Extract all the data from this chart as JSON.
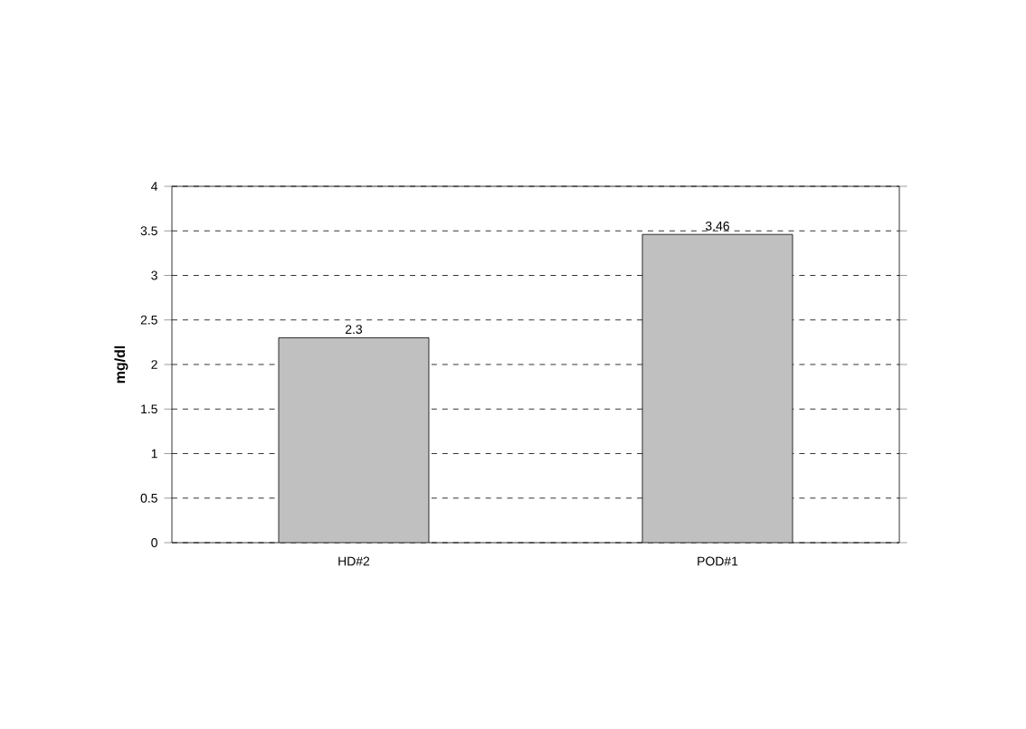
{
  "chart_data": {
    "type": "bar",
    "ylabel": "mg/dl",
    "categories": [
      "HD#2",
      "POD#1"
    ],
    "values": [
      2.3,
      3.46
    ],
    "color": "#c0c0c0",
    "ylim": [
      0,
      4
    ],
    "yticks": [
      0,
      0.5,
      1,
      1.5,
      2,
      2.5,
      3,
      3.5,
      4
    ],
    "grid": "y",
    "data_labels": true
  }
}
